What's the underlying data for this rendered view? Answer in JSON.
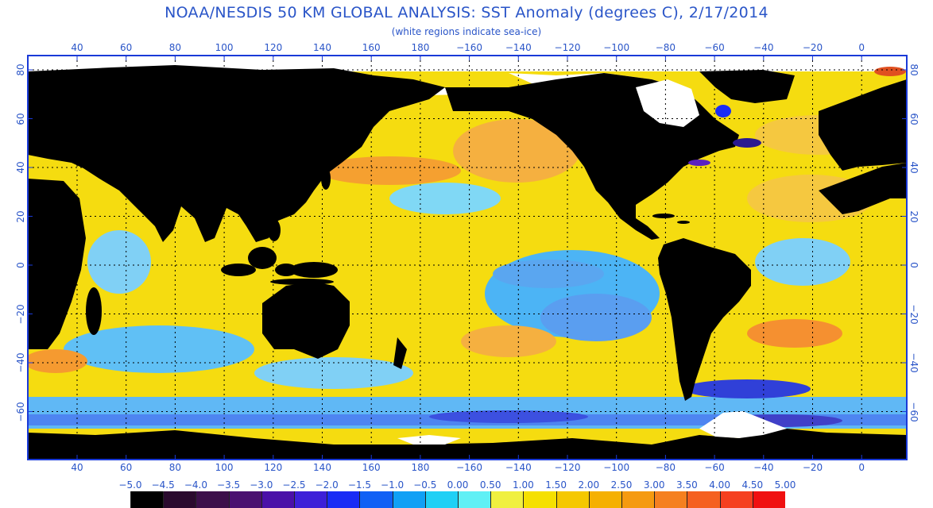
{
  "title": "NOAA/NESDIS 50 KM GLOBAL ANALYSIS: SST Anomaly (degrees C), 2/17/2014",
  "subtitle": "(white regions indicate sea-ice)",
  "lon_labels": [
    "40",
    "60",
    "80",
    "100",
    "120",
    "140",
    "160",
    "180",
    "−160",
    "−140",
    "−120",
    "−100",
    "−80",
    "−60",
    "−40",
    "−20",
    "0"
  ],
  "lat_labels": [
    "80",
    "60",
    "40",
    "20",
    "0",
    "−20",
    "−40",
    "−60"
  ],
  "colorbar": {
    "labels": [
      "−5.0",
      "−4.5",
      "−4.0",
      "−3.5",
      "−3.0",
      "−2.5",
      "−2.0",
      "−1.5",
      "−1.0",
      "−0.5",
      "0.00",
      "0.50",
      "1.00",
      "1.50",
      "2.00",
      "2.50",
      "3.00",
      "3.50",
      "4.00",
      "4.50",
      "5.00"
    ],
    "colors": [
      "#000000",
      "#2a0a2e",
      "#3c0f4a",
      "#4a1070",
      "#4a10a8",
      "#3d20d8",
      "#1a2cf5",
      "#1060f5",
      "#10a0f5",
      "#20d0f5",
      "#60f0f5",
      "#f0f040",
      "#f5e000",
      "#f5c800",
      "#f5b000",
      "#f59a10",
      "#f58020",
      "#f56020",
      "#f54020",
      "#f01010"
    ]
  },
  "colors": {
    "land": "#000000",
    "ice": "#ffffff",
    "frame": "#1a3ad8",
    "label": "#2a55c8",
    "grid": "#000000"
  }
}
